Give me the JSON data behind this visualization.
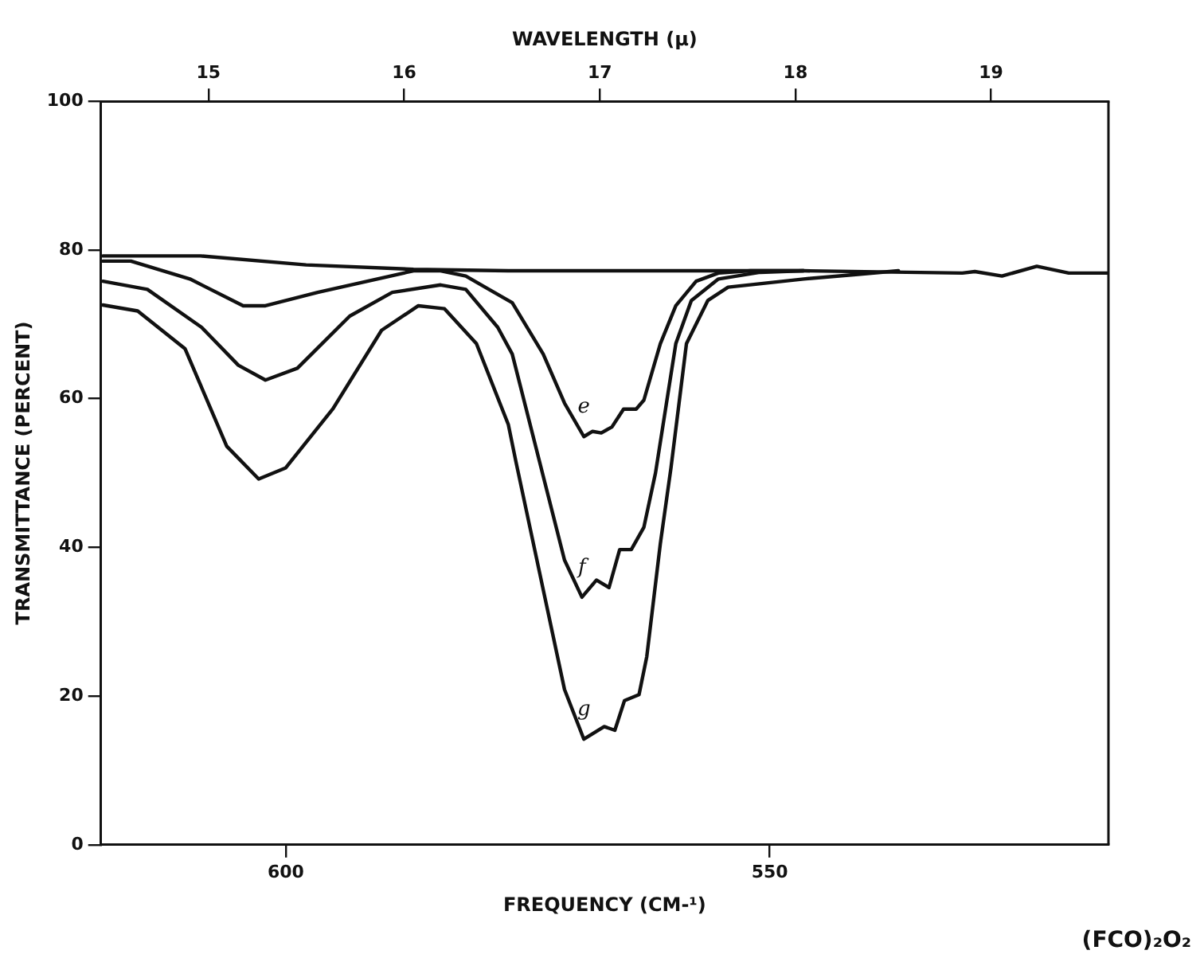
{
  "chart_data": {
    "type": "line",
    "xlabel": "FREQUENCY (CM-¹)",
    "x2label": "WAVELENGTH (μ)",
    "ylabel": "TRANSMITTANCE (PERCENT)",
    "xlim": [
      619.1,
      515.0
    ],
    "xticks": [
      600,
      550
    ],
    "x2lim": [
      14.45,
      19.6
    ],
    "x2ticks": [
      15,
      16,
      17,
      18,
      19
    ],
    "ylim": [
      0,
      100
    ],
    "yticks": [
      0,
      20,
      40,
      60,
      80,
      100
    ],
    "grid": false,
    "legend": false,
    "marker": "none",
    "line_style": "solid",
    "series": [
      {
        "color": "#111111",
        "x": [
          618.9,
          608.8,
          597.9,
          586.8,
          577.0,
          563.0,
          546.5,
          530.1,
          528.8,
          526.0,
          522.4,
          519.1,
          515.1
        ],
        "values": [
          79.2,
          79.2,
          78.0,
          77.4,
          77.2,
          77.2,
          77.2,
          76.9,
          77.1,
          76.5,
          77.8,
          76.9,
          76.9
        ]
      },
      {
        "name": "e",
        "color": "#111111",
        "x": [
          618.9,
          616.0,
          609.9,
          604.4,
          602.1,
          596.7,
          586.8,
          584.0,
          581.4,
          579.4,
          576.6,
          573.4,
          571.2,
          569.2,
          568.3,
          567.4,
          566.3,
          565.1,
          563.8,
          563.0,
          561.3,
          559.7,
          557.6,
          555.3,
          552.0,
          546.5
        ],
        "values": [
          78.5,
          78.5,
          76.1,
          72.5,
          72.5,
          74.3,
          77.2,
          77.2,
          76.5,
          75.0,
          72.9,
          66.0,
          59.4,
          54.9,
          55.6,
          55.4,
          56.2,
          58.6,
          58.6,
          59.8,
          67.4,
          72.5,
          75.8,
          76.9,
          77.2,
          77.2
        ]
      },
      {
        "name": "f",
        "color": "#111111",
        "x": [
          618.9,
          614.3,
          608.7,
          604.9,
          602.1,
          598.8,
          593.4,
          589.0,
          584.0,
          581.4,
          578.1,
          576.6,
          571.2,
          569.4,
          567.9,
          566.6,
          565.5,
          564.3,
          563.0,
          561.8,
          559.7,
          558.1,
          555.3,
          551.0,
          546.5
        ],
        "values": [
          75.8,
          74.7,
          69.6,
          64.5,
          62.5,
          64.1,
          71.1,
          74.3,
          75.3,
          74.7,
          69.6,
          66.0,
          38.3,
          33.3,
          35.6,
          34.6,
          39.7,
          39.7,
          42.7,
          50.0,
          67.4,
          73.2,
          76.1,
          77.0,
          77.2
        ]
      },
      {
        "name": "g",
        "color": "#111111",
        "x": [
          618.9,
          615.3,
          610.4,
          606.1,
          602.8,
          600.0,
          595.1,
          590.1,
          586.3,
          583.6,
          580.3,
          577.0,
          576.2,
          571.2,
          569.2,
          567.1,
          566.0,
          565.0,
          563.5,
          562.7,
          561.3,
          560.2,
          558.6,
          556.4,
          554.3,
          546.5,
          541.1,
          536.7
        ],
        "values": [
          72.6,
          71.8,
          66.7,
          53.6,
          49.2,
          50.7,
          58.7,
          69.2,
          72.5,
          72.1,
          67.4,
          56.5,
          51.4,
          20.9,
          14.2,
          15.9,
          15.4,
          19.4,
          20.2,
          25.3,
          40.5,
          50.7,
          67.4,
          73.2,
          75.0,
          76.1,
          76.7,
          77.2
        ]
      }
    ],
    "annotations": [
      "(FCO)₂O₂"
    ]
  }
}
